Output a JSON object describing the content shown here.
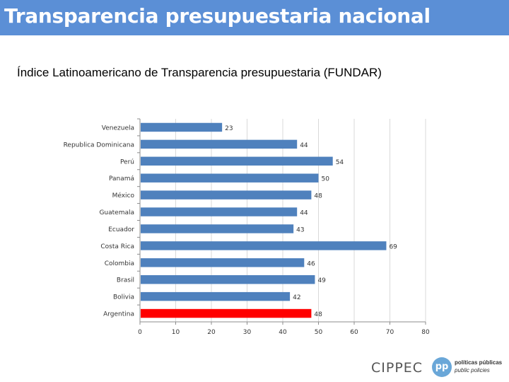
{
  "header": {
    "title": "Transparencia presupuestaria nacional"
  },
  "subtitle": "Índice Latinoamericano de Transparencia presupuestaria (FUNDAR)",
  "logos": {
    "cippec": "CIPPEC",
    "pp_mark": "pp",
    "pp_line1": "políticas públicas",
    "pp_line2": "public policies"
  },
  "colors": {
    "header": "#5b8fd6",
    "bar": "#4f81bd",
    "highlight": "#ff0000"
  },
  "chart_data": {
    "type": "bar",
    "orientation": "horizontal",
    "title": "",
    "xlabel": "",
    "ylabel": "",
    "xlim": [
      0,
      80
    ],
    "xticks": [
      0,
      10,
      20,
      30,
      40,
      50,
      60,
      70,
      80
    ],
    "categories": [
      "Venezuela",
      "Republica Dominicana",
      "Perú",
      "Panamá",
      "México",
      "Guatemala",
      "Ecuador",
      "Costa Rica",
      "Colombia",
      "Brasil",
      "Bolivia",
      "Argentina"
    ],
    "values": [
      23,
      44,
      54,
      50,
      48,
      44,
      43,
      69,
      46,
      49,
      42,
      48
    ],
    "highlight": "Argentina",
    "grid": true,
    "legend": false
  }
}
